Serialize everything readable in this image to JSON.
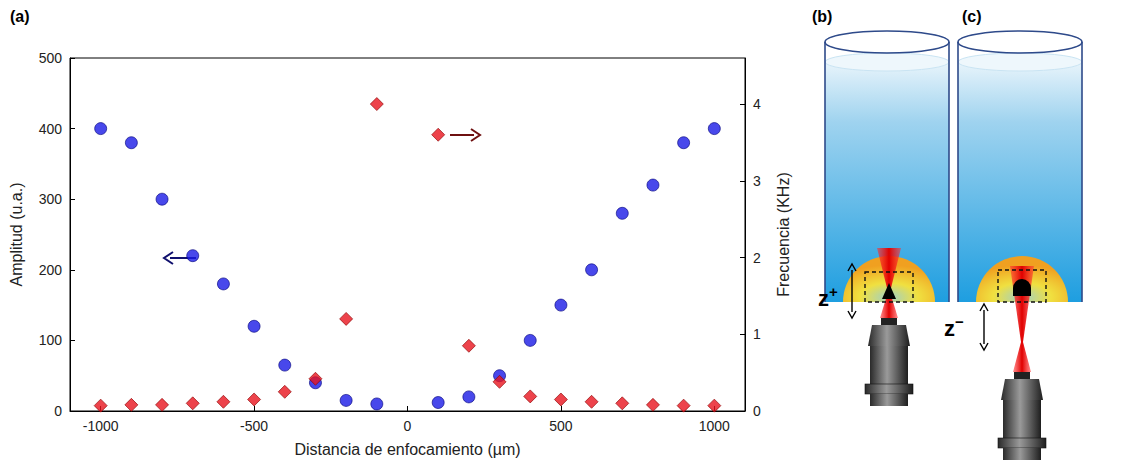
{
  "chart_data": {
    "type": "scatter",
    "panel": "(a)",
    "x_label": "Distancia de enfocamiento (µm)",
    "y_label": "Amplitud (u.a.)",
    "y2_label": "Frecuencia (KHz)",
    "xlim": [
      -1100,
      1100
    ],
    "xticks": [
      -1000,
      -500,
      0,
      500,
      1000
    ],
    "ylim": [
      0,
      500
    ],
    "yticks": [
      0,
      100,
      200,
      300,
      400,
      500
    ],
    "y2lim": [
      0,
      4.6
    ],
    "y2ticks": [
      0,
      1,
      2,
      3,
      4
    ],
    "x": [
      -1000,
      -900,
      -800,
      -700,
      -600,
      -500,
      -400,
      -300,
      -200,
      -100,
      100,
      200,
      300,
      400,
      500,
      600,
      700,
      800,
      900,
      1000
    ],
    "series": [
      {
        "color": "#1a1ae6",
        "marker": "circle",
        "values": [
          400,
          380,
          300,
          220,
          180,
          120,
          65,
          40,
          15,
          10,
          12,
          20,
          50,
          100,
          150,
          200,
          280,
          320,
          380,
          400
        ]
      },
      {
        "color": "#e8141e",
        "marker": "diamond",
        "axis": "y2",
        "values": [
          0.07,
          0.08,
          0.08,
          0.1,
          0.12,
          0.15,
          0.25,
          0.42,
          1.2,
          4.0,
          3.6,
          0.85,
          0.38,
          0.19,
          0.15,
          0.12,
          0.1,
          0.08,
          0.07,
          0.07
        ]
      }
    ]
  },
  "diagrams": [
    {
      "panel": "(b)",
      "label": "z",
      "superscript": "+"
    },
    {
      "panel": "(c)",
      "label": "z",
      "superscript": "−"
    }
  ]
}
